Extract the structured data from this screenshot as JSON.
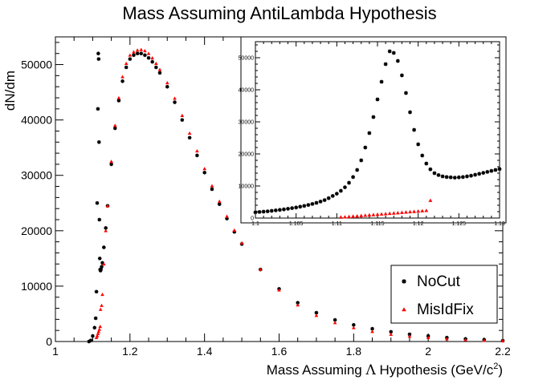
{
  "chart_data": [
    {
      "type": "scatter",
      "title": "Mass Assuming AntiLambda Hypothesis",
      "xlabel": "Mass Assuming Λ Hypothesis (GeV/c²)",
      "xlabel_main": "Mass Assuming ",
      "xlabel_symbol": "Λ",
      "xlabel_rest": " Hypothesis (GeV/c",
      "xlabel_sup": "2",
      "xlabel_close": ")",
      "ylabel": "dN/dm",
      "xlim": [
        1.0,
        2.2
      ],
      "ylim": [
        0,
        55000
      ],
      "x_ticks": [
        1,
        1.2,
        1.4,
        1.6,
        1.8,
        2,
        2.2
      ],
      "x_tick_labels": [
        "1",
        "1.2",
        "1.4",
        "1.6",
        "1.8",
        "2",
        "2.2"
      ],
      "y_ticks": [
        0,
        10000,
        20000,
        30000,
        40000,
        50000
      ],
      "y_tick_labels": [
        "0",
        "10000",
        "20000",
        "30000",
        "40000",
        "50000"
      ],
      "grid": false,
      "legend_position": "bottom-right",
      "series": [
        {
          "name": "NoCut",
          "color": "#000000",
          "marker": "star",
          "x": [
            1.09,
            1.095,
            1.1,
            1.105,
            1.108,
            1.11,
            1.112,
            1.114,
            1.115,
            1.116,
            1.117,
            1.118,
            1.119,
            1.12,
            1.121,
            1.122,
            1.124,
            1.126,
            1.13,
            1.135,
            1.14,
            1.15,
            1.16,
            1.17,
            1.18,
            1.19,
            1.2,
            1.21,
            1.22,
            1.23,
            1.24,
            1.25,
            1.26,
            1.27,
            1.28,
            1.3,
            1.32,
            1.34,
            1.36,
            1.38,
            1.4,
            1.42,
            1.44,
            1.46,
            1.48,
            1.5,
            1.55,
            1.6,
            1.65,
            1.7,
            1.75,
            1.8,
            1.85,
            1.9,
            1.95,
            2.0,
            2.05,
            2.1,
            2.15,
            2.2
          ],
          "y": [
            0,
            200,
            1000,
            2500,
            4200,
            9000,
            25000,
            42000,
            52000,
            51000,
            36000,
            22000,
            15000,
            13000,
            12800,
            13000,
            13500,
            14200,
            17000,
            20500,
            24500,
            32000,
            38500,
            43500,
            47000,
            49500,
            51000,
            51700,
            52000,
            52000,
            51700,
            51200,
            50500,
            49500,
            48500,
            46000,
            43200,
            40000,
            36800,
            33600,
            30500,
            27500,
            24800,
            22200,
            19800,
            17600,
            13000,
            9500,
            7000,
            5200,
            3900,
            3000,
            2300,
            1750,
            1300,
            1000,
            700,
            480,
            320,
            150
          ]
        },
        {
          "name": "MisIdFix",
          "color": "#ff0000",
          "marker": "triangle",
          "x": [
            1.11,
            1.112,
            1.114,
            1.116,
            1.118,
            1.12,
            1.121,
            1.124,
            1.126,
            1.13,
            1.135,
            1.14,
            1.15,
            1.16,
            1.17,
            1.18,
            1.19,
            1.2,
            1.21,
            1.22,
            1.23,
            1.24,
            1.25,
            1.26,
            1.27,
            1.28,
            1.3,
            1.32,
            1.34,
            1.36,
            1.38,
            1.4,
            1.42,
            1.44,
            1.46,
            1.48,
            1.5,
            1.55,
            1.6,
            1.65,
            1.7,
            1.75,
            1.8,
            1.85,
            1.9,
            1.95,
            2.0,
            2.05,
            2.1,
            2.15,
            2.2
          ],
          "y": [
            700,
            1000,
            1400,
            1800,
            2200,
            2700,
            5800,
            6500,
            8500,
            14000,
            20000,
            24500,
            32500,
            39000,
            44000,
            47800,
            50200,
            51700,
            52300,
            52600,
            52700,
            52500,
            52000,
            51200,
            50200,
            49100,
            46700,
            43900,
            40800,
            37600,
            34400,
            31200,
            28100,
            25300,
            22600,
            20100,
            17800,
            13000,
            9300,
            6600,
            4700,
            3400,
            2500,
            1800,
            1300,
            950,
            700,
            480,
            320,
            200,
            120
          ]
        }
      ]
    },
    {
      "type": "scatter",
      "title": "",
      "xlim": [
        1.1,
        1.13
      ],
      "ylim": [
        0,
        55000
      ],
      "x_ticks": [
        1.1,
        1.105,
        1.11,
        1.115,
        1.12,
        1.125,
        1.13
      ],
      "x_tick_labels": [
        "1.1",
        "1.105",
        "1.11",
        "1.115",
        "1.12",
        "1.125",
        "1.13"
      ],
      "y_ticks": [
        0,
        10000,
        20000,
        30000,
        40000,
        50000
      ],
      "y_tick_labels": [
        "0",
        "10000",
        "20000",
        "30000",
        "40000",
        "50000"
      ],
      "series": [
        {
          "name": "NoCut",
          "color": "#000000",
          "marker": "star",
          "x": [
            1.1,
            1.1005,
            1.101,
            1.1015,
            1.102,
            1.1025,
            1.103,
            1.1035,
            1.104,
            1.1045,
            1.105,
            1.1055,
            1.106,
            1.1065,
            1.107,
            1.1075,
            1.108,
            1.1085,
            1.109,
            1.1095,
            1.11,
            1.1105,
            1.111,
            1.1115,
            1.112,
            1.1125,
            1.113,
            1.1135,
            1.114,
            1.1145,
            1.115,
            1.1155,
            1.116,
            1.1165,
            1.117,
            1.1175,
            1.118,
            1.1185,
            1.119,
            1.1195,
            1.12,
            1.1205,
            1.121,
            1.1215,
            1.122,
            1.1225,
            1.123,
            1.1235,
            1.124,
            1.1245,
            1.125,
            1.1255,
            1.126,
            1.1265,
            1.127,
            1.1275,
            1.128,
            1.1285,
            1.129,
            1.1295,
            1.13
          ],
          "y": [
            1800,
            1900,
            2000,
            2100,
            2250,
            2400,
            2550,
            2700,
            2900,
            3100,
            3300,
            3550,
            3800,
            4100,
            4400,
            4750,
            5150,
            5600,
            6200,
            6900,
            7600,
            8500,
            9600,
            11000,
            12800,
            15000,
            18000,
            22000,
            26500,
            31500,
            37000,
            42500,
            48000,
            52000,
            51500,
            49000,
            44500,
            39000,
            33000,
            27500,
            23000,
            19500,
            17000,
            15200,
            14000,
            13400,
            13000,
            12800,
            12700,
            12600,
            12700,
            12800,
            13000,
            13200,
            13500,
            13800,
            14100,
            14400,
            14700,
            15000,
            15300
          ]
        },
        {
          "name": "MisIdFix",
          "color": "#ff0000",
          "marker": "triangle",
          "x": [
            1.1105,
            1.111,
            1.1115,
            1.112,
            1.1125,
            1.113,
            1.1135,
            1.114,
            1.1145,
            1.115,
            1.1155,
            1.116,
            1.1165,
            1.117,
            1.1175,
            1.118,
            1.1185,
            1.119,
            1.1195,
            1.12,
            1.1205,
            1.121,
            1.1215
          ],
          "y": [
            300,
            350,
            450,
            550,
            650,
            750,
            850,
            950,
            1050,
            1150,
            1250,
            1350,
            1450,
            1550,
            1650,
            1750,
            1850,
            1950,
            2050,
            2150,
            2250,
            2350,
            5500
          ]
        }
      ]
    }
  ]
}
